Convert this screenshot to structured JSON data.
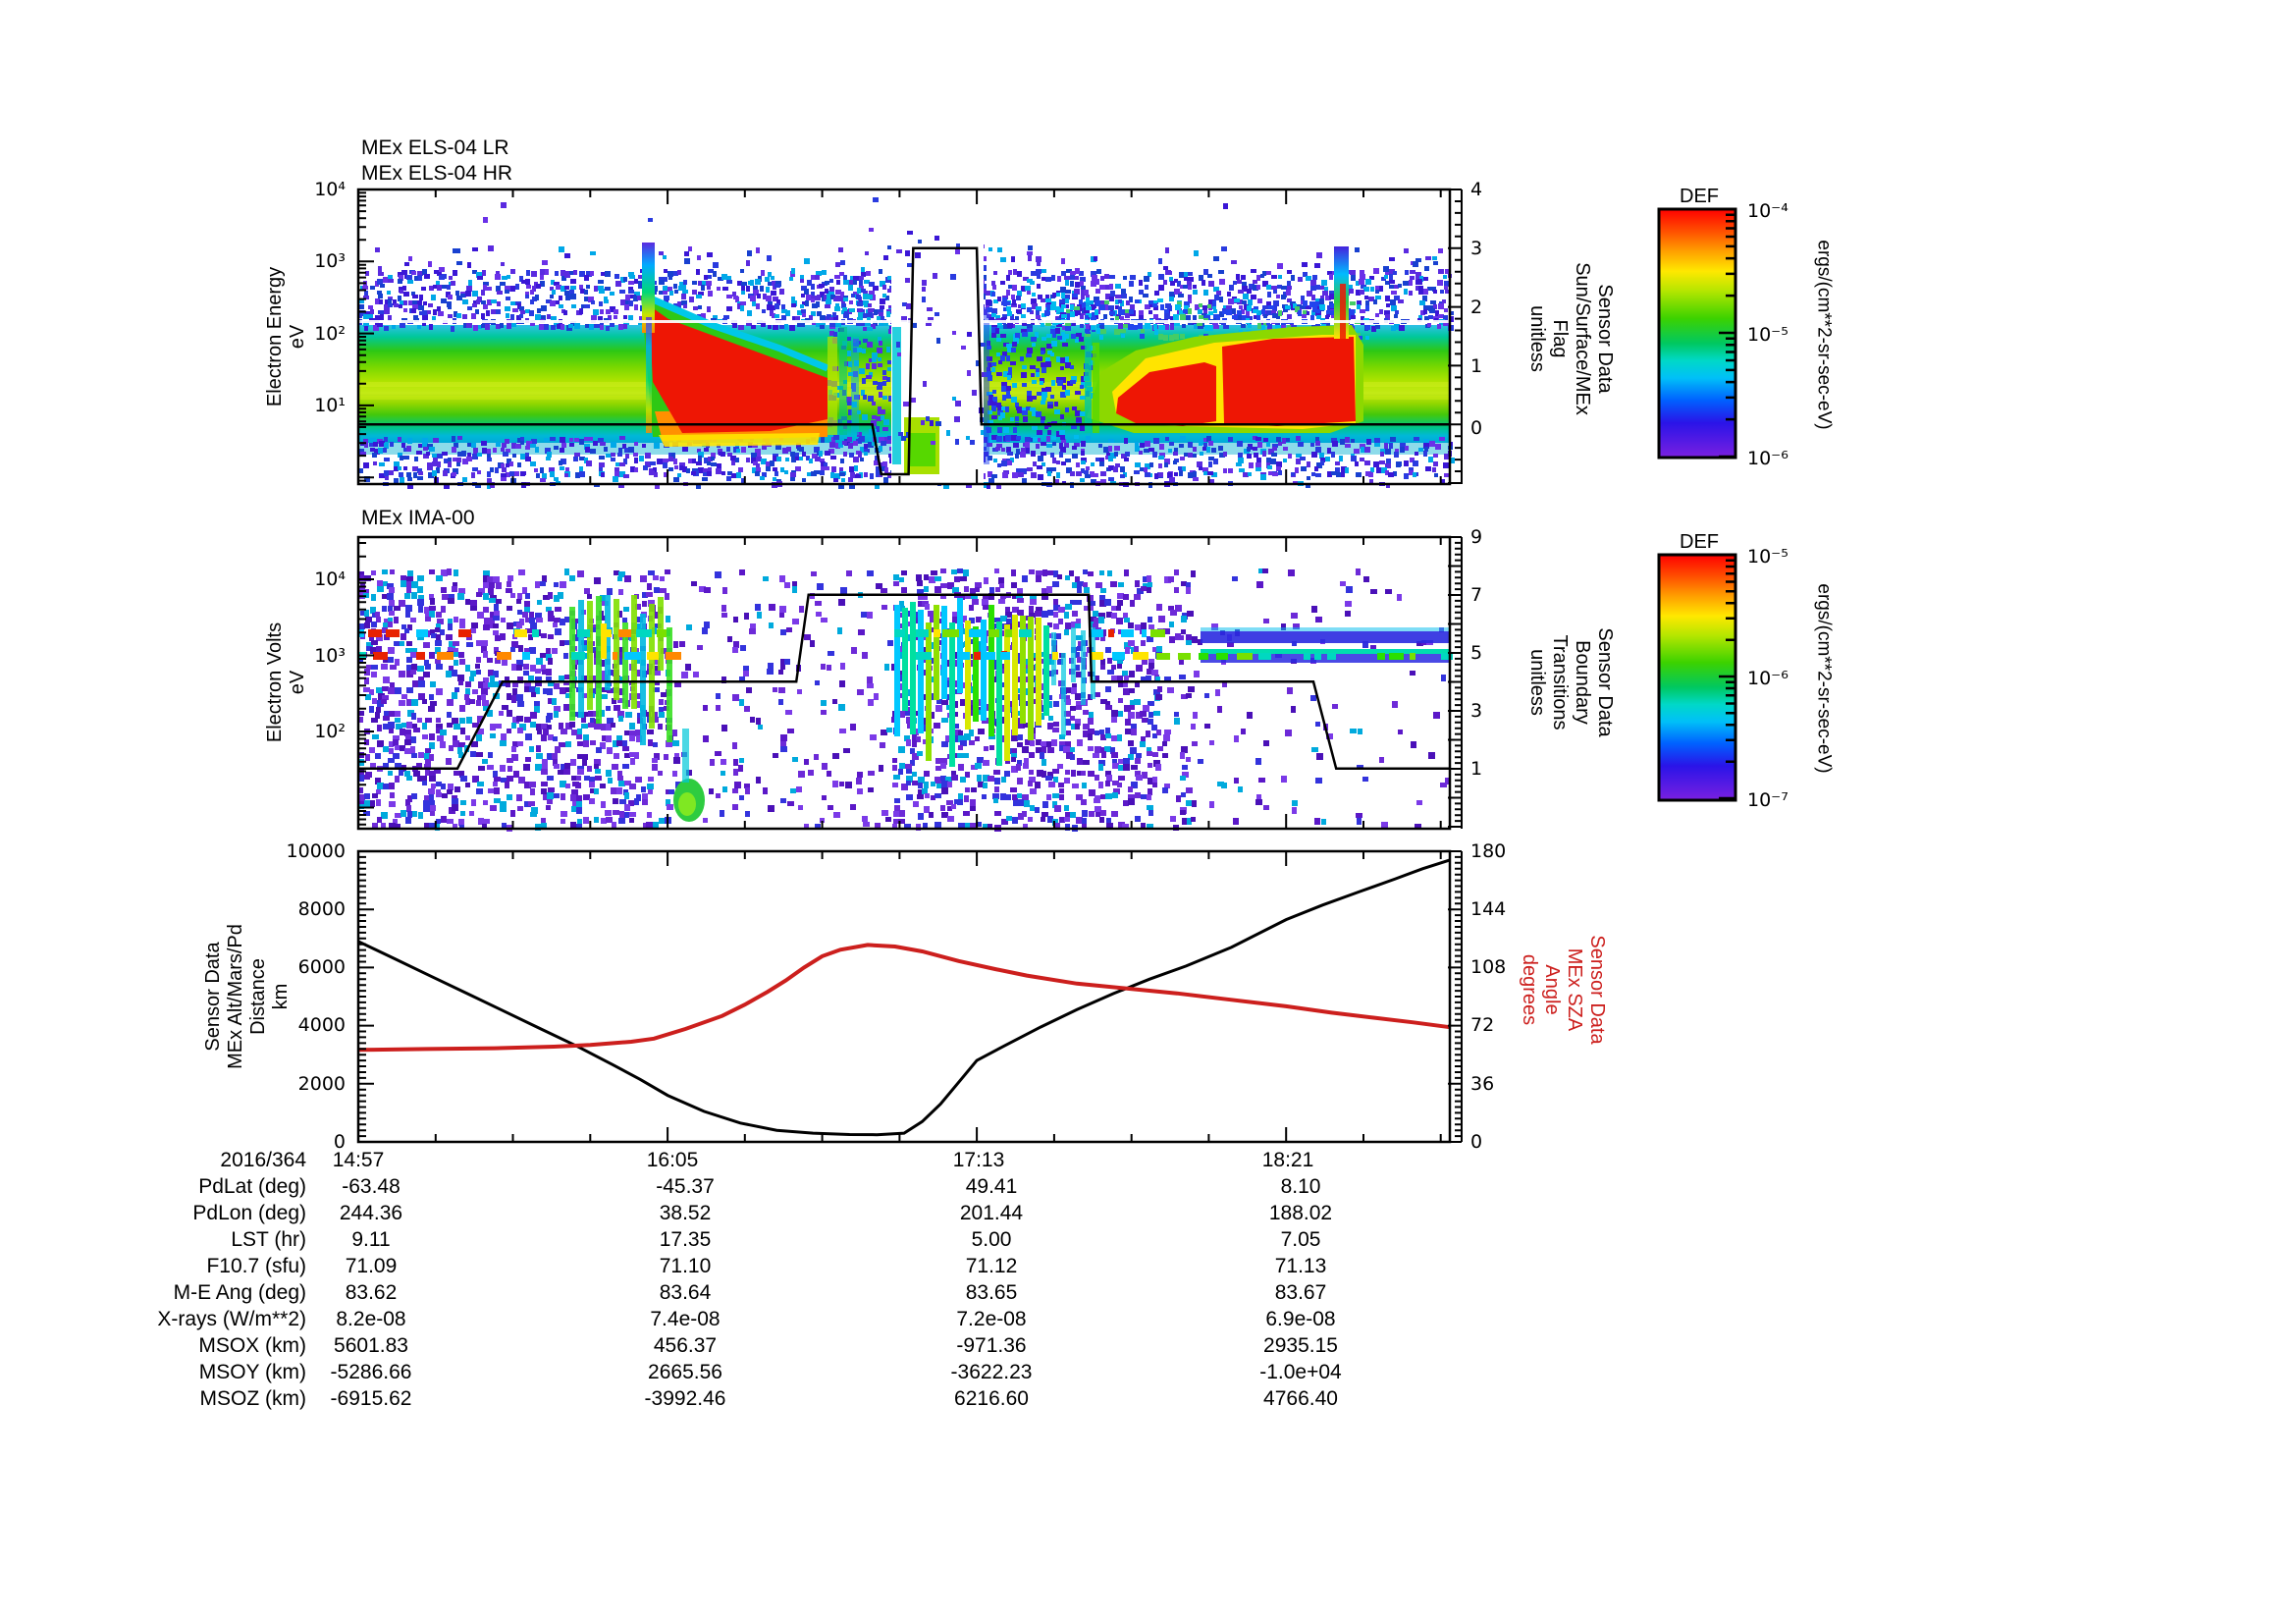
{
  "panels": {
    "els": {
      "title_line1": "MEx ELS-04 LR",
      "title_line2": "MEx ELS-04 HR",
      "ylabel": "Electron Energy\neV",
      "yticks": [
        "10⁴",
        "10³",
        "10²",
        "10¹"
      ],
      "right_label": "Sensor Data\nSun/Surface/MEx\nFlag\nunitless",
      "right_ticks": [
        "4",
        "3",
        "2",
        "1",
        "0"
      ],
      "colorbar": {
        "title": "DEF",
        "ticks": [
          "10⁻⁴",
          "10⁻⁵",
          "10⁻⁶"
        ],
        "unit": "ergs/(cm**2-sr-sec-eV)"
      }
    },
    "ima": {
      "title": "MEx IMA-00",
      "ylabel": "Electron Volts\neV",
      "yticks": [
        "10⁴",
        "10³",
        "10²"
      ],
      "right_label": "Sensor Data\nBoundary\nTransitions\nunitless",
      "right_ticks": [
        "9",
        "7",
        "5",
        "3",
        "1"
      ],
      "colorbar": {
        "title": "DEF",
        "ticks": [
          "10⁻⁵",
          "10⁻⁶",
          "10⁻⁷"
        ],
        "unit": "ergs/(cm**2-sr-sec-eV)"
      }
    },
    "orbit": {
      "ylabel": "Sensor Data\nMEx Alt/Mars/Pd\nDistance\nkm",
      "yticks": [
        "10000",
        "8000",
        "6000",
        "4000",
        "2000",
        "0"
      ],
      "right_label": "Sensor Data\nMEx SZA\nAngle\ndegrees",
      "right_ticks": [
        "180",
        "144",
        "108",
        "72",
        "36",
        "0"
      ]
    }
  },
  "table": {
    "rows": [
      {
        "label": "2016/364",
        "values": [
          "14:57",
          "16:05",
          "17:13",
          "18:21"
        ]
      },
      {
        "label": "PdLat (deg)",
        "values": [
          "-63.48",
          "-45.37",
          "49.41",
          "8.10"
        ]
      },
      {
        "label": "PdLon (deg)",
        "values": [
          "244.36",
          "38.52",
          "201.44",
          "188.02"
        ]
      },
      {
        "label": "LST (hr)",
        "values": [
          "9.11",
          "17.35",
          "5.00",
          "7.05"
        ]
      },
      {
        "label": "F10.7 (sfu)",
        "values": [
          "71.09",
          "71.10",
          "71.12",
          "71.13"
        ]
      },
      {
        "label": "M-E Ang (deg)",
        "values": [
          "83.62",
          "83.64",
          "83.65",
          "83.67"
        ]
      },
      {
        "label": "X-rays (W/m**2)",
        "values": [
          "8.2e-08",
          "7.4e-08",
          "7.2e-08",
          "6.9e-08"
        ]
      },
      {
        "label": "MSOX (km)",
        "values": [
          "5601.83",
          "456.37",
          "-971.36",
          "2935.15"
        ]
      },
      {
        "label": "MSOY (km)",
        "values": [
          "-5286.66",
          "2665.56",
          "-3622.23",
          "-1.0e+04"
        ]
      },
      {
        "label": "MSOZ (km)",
        "values": [
          "-6915.62",
          "-3992.46",
          "6216.60",
          "4766.40"
        ]
      }
    ]
  },
  "colors": {
    "sza_red": "#cc1f1d",
    "line_black": "#000000",
    "colorbar_top": "#ff0000",
    "colorbar_bottom": "#7a20e0"
  },
  "chart_data": [
    {
      "type": "heatmap",
      "title": "MEx ELS-04 LR / MEx ELS-04 HR",
      "xlabel": "time, 2016/364 14:57 to ~18:56",
      "ylabel": "Electron Energy (eV)",
      "y_range_log": [
        1,
        10000
      ],
      "zlabel": "DEF ergs/(cm**2-sr-sec-eV)",
      "z_range_log": [
        1e-06,
        0.0001
      ],
      "legend_position": "right colorbar DEF",
      "overlay_flag": {
        "name": "Sensor Data Sun/Surface/MEx Flag (unitless)",
        "axis_range": [
          -1,
          4
        ],
        "steps_min_value": [
          [
            0,
            0
          ],
          [
            113,
            0
          ],
          [
            115,
            -0.85
          ],
          [
            121,
            -0.85
          ],
          [
            122,
            3
          ],
          [
            136,
            3
          ],
          [
            137,
            0
          ],
          [
            240,
            0
          ]
        ]
      },
      "features": [
        "continuous 5-100 eV green/yellow plasma band across full interval",
        "intense red flux enhancement ~15:55-16:35 below ~300 eV",
        "white data gap ~16:53-17:13 during flag=3 interval",
        "second red enhancement ~17:20-18:05 with narrow spike at ~18:00",
        "blue noise speckle 150-600 eV and below 5 eV"
      ]
    },
    {
      "type": "heatmap",
      "title": "MEx IMA-00",
      "xlabel": "time, same axis as panel 1",
      "ylabel": "Electron Volts (eV)",
      "y_range_log": [
        10,
        30000
      ],
      "zlabel": "DEF ergs/(cm**2-sr-sec-eV)",
      "z_range_log": [
        1e-07,
        1e-05
      ],
      "legend_position": "right colorbar DEF",
      "overlay_boundary": {
        "name": "Sensor Data Boundary Transitions (unitless)",
        "axis_range": [
          -1,
          9
        ],
        "steps_min_value": [
          [
            0,
            1
          ],
          [
            21.8,
            1
          ],
          [
            31.7,
            4
          ],
          [
            96.3,
            4
          ],
          [
            99,
            7
          ],
          [
            160.6,
            7
          ],
          [
            161.2,
            4
          ],
          [
            210,
            4
          ],
          [
            215,
            1
          ],
          [
            240,
            1
          ]
        ]
      },
      "features": [
        "diffuse purple ion speckle over most of interval",
        "dashed flux bands near 1-2 keV",
        "vertical green/cyan striping ~15:40-16:10 and ~16:55-17:25",
        "sparse central region ~16:05-16:55",
        "narrow horizontal beams near 1-2 keV after ~17:45"
      ]
    },
    {
      "type": "line",
      "title": "MEx orbit geometry",
      "x_unit": "minutes after 2016/364 14:57",
      "x_range": [
        0,
        240
      ],
      "x_tick_minutes": [
        0,
        68,
        136,
        204
      ],
      "grid": false,
      "series": [
        {
          "name": "MEx Alt/Mars/Pd Distance",
          "unit": "km",
          "axis": "left",
          "ylim": [
            0,
            10000
          ],
          "color": "#000000",
          "points": [
            [
              0,
              6900
            ],
            [
              8,
              6300
            ],
            [
              16,
              5700
            ],
            [
              24,
              5100
            ],
            [
              32,
              4500
            ],
            [
              40,
              3900
            ],
            [
              48,
              3300
            ],
            [
              56,
              2650
            ],
            [
              62,
              2150
            ],
            [
              68,
              1600
            ],
            [
              76,
              1050
            ],
            [
              84,
              650
            ],
            [
              92,
              400
            ],
            [
              100,
              300
            ],
            [
              108,
              255
            ],
            [
              114,
              245
            ],
            [
              120,
              300
            ],
            [
              124,
              700
            ],
            [
              128,
              1300
            ],
            [
              132,
              2050
            ],
            [
              136,
              2800
            ],
            [
              142,
              3300
            ],
            [
              150,
              3950
            ],
            [
              158,
              4550
            ],
            [
              166,
              5100
            ],
            [
              174,
              5600
            ],
            [
              182,
              6050
            ],
            [
              192,
              6700
            ],
            [
              204,
              7650
            ],
            [
              212,
              8150
            ],
            [
              220,
              8600
            ],
            [
              228,
              9050
            ],
            [
              234,
              9400
            ],
            [
              240,
              9700
            ]
          ]
        },
        {
          "name": "MEx SZA Angle",
          "unit": "degrees",
          "axis": "right",
          "ylim": [
            0,
            180
          ],
          "color": "#cc1f1d",
          "points": [
            [
              0,
              57
            ],
            [
              15,
              57.5
            ],
            [
              30,
              58
            ],
            [
              43,
              59
            ],
            [
              51,
              60
            ],
            [
              60,
              62
            ],
            [
              65,
              64
            ],
            [
              72,
              70
            ],
            [
              80,
              78
            ],
            [
              85,
              85
            ],
            [
              90,
              93
            ],
            [
              94,
              100
            ],
            [
              98,
              108
            ],
            [
              102,
              115
            ],
            [
              106,
              119
            ],
            [
              112,
              122
            ],
            [
              118,
              121
            ],
            [
              124,
              118
            ],
            [
              132,
              112
            ],
            [
              140,
              107
            ],
            [
              147,
              103
            ],
            [
              158,
              98
            ],
            [
              169,
              95
            ],
            [
              180,
              92
            ],
            [
              192,
              88
            ],
            [
              204,
              84
            ],
            [
              214,
              80
            ],
            [
              223,
              77
            ],
            [
              232,
              74
            ],
            [
              240,
              71
            ]
          ]
        }
      ]
    }
  ]
}
